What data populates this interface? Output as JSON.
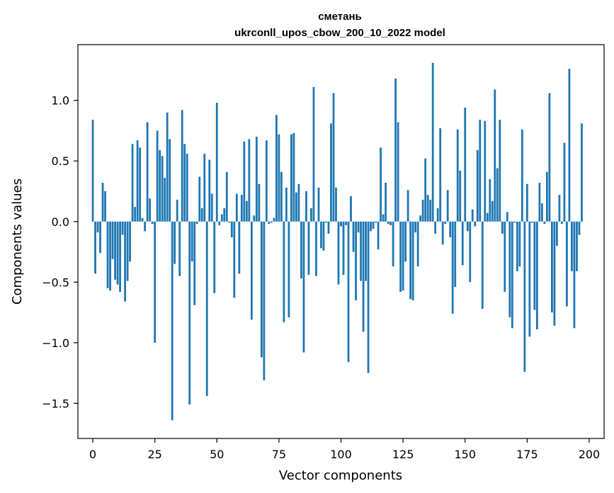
{
  "chart_data": {
    "type": "bar",
    "title": "сметань",
    "subtitle": "ukrconll_upos_cbow_200_10_2022 model",
    "xlabel": "Vector components",
    "ylabel": "Components values",
    "xlim": [
      -6,
      206
    ],
    "ylim": [
      -1.79,
      1.46
    ],
    "xticks": [
      0,
      25,
      50,
      75,
      100,
      125,
      150,
      175,
      200
    ],
    "xtick_labels": [
      "0",
      "25",
      "50",
      "75",
      "100",
      "125",
      "150",
      "175",
      "200"
    ],
    "yticks": [
      -1.5,
      -1.0,
      -0.5,
      0.0,
      0.5,
      1.0
    ],
    "ytick_labels": [
      "−1.5",
      "−1.0",
      "−0.5",
      "0.0",
      "0.5",
      "1.0"
    ],
    "grid": false,
    "color": "#1f77b4",
    "values": [
      0.84,
      -0.43,
      -0.09,
      -0.26,
      0.32,
      0.25,
      -0.55,
      -0.57,
      -0.31,
      -0.48,
      -0.52,
      -0.58,
      -0.11,
      -0.66,
      -0.49,
      -0.33,
      0.64,
      0.12,
      0.67,
      0.61,
      0.03,
      -0.08,
      0.82,
      0.19,
      -0.02,
      -1.0,
      0.75,
      0.59,
      0.54,
      0.36,
      0.9,
      0.68,
      -1.64,
      -0.35,
      0.18,
      -0.45,
      0.92,
      0.64,
      0.56,
      -1.51,
      -0.33,
      -0.69,
      -0.02,
      0.37,
      0.11,
      0.56,
      -1.44,
      0.51,
      0.23,
      -0.59,
      0.98,
      -0.03,
      0.06,
      0.11,
      0.41,
      -0.01,
      -0.13,
      -0.63,
      0.23,
      -0.43,
      0.22,
      0.66,
      0.17,
      0.68,
      -0.81,
      0.05,
      0.7,
      0.31,
      -1.12,
      -1.31,
      0.67,
      -0.02,
      -0.01,
      0.03,
      0.88,
      0.72,
      0.41,
      -0.83,
      0.28,
      -0.79,
      0.72,
      0.73,
      0.24,
      0.31,
      -0.47,
      -1.08,
      0.25,
      -0.44,
      0.11,
      1.11,
      -0.45,
      0.28,
      -0.22,
      -0.24,
      -0.01,
      -0.1,
      0.81,
      1.06,
      0.28,
      -0.52,
      -0.04,
      -0.44,
      -0.03,
      -1.16,
      0.21,
      -0.25,
      -0.65,
      -0.09,
      -0.49,
      -0.91,
      -0.49,
      -1.25,
      -0.08,
      -0.06,
      -0.01,
      -0.23,
      0.61,
      0.06,
      0.32,
      -0.02,
      -0.03,
      -0.37,
      1.18,
      0.82,
      -0.58,
      -0.57,
      -0.33,
      0.26,
      -0.64,
      -0.65,
      -0.09,
      -0.37,
      0.05,
      0.18,
      0.52,
      0.22,
      0.18,
      1.31,
      -0.1,
      0.11,
      0.77,
      -0.19,
      -0.02,
      0.26,
      -0.13,
      -0.76,
      -0.54,
      0.76,
      0.42,
      -0.36,
      0.94,
      -0.08,
      -0.5,
      0.1,
      -0.04,
      0.59,
      0.84,
      -0.72,
      0.83,
      0.07,
      0.35,
      0.17,
      1.09,
      0.44,
      0.84,
      -0.1,
      -0.58,
      0.08,
      -0.79,
      -0.88,
      -0.01,
      -0.41,
      -0.37,
      0.76,
      -1.24,
      0.31,
      -0.95,
      -0.01,
      -0.73,
      -0.89,
      0.32,
      0.15,
      -0.02,
      0.41,
      1.06,
      -0.75,
      -0.86,
      -0.2,
      0.22,
      -0.02,
      0.65,
      -0.7,
      1.26,
      -0.41,
      -0.88,
      -0.41,
      -0.11,
      0.81
    ]
  }
}
